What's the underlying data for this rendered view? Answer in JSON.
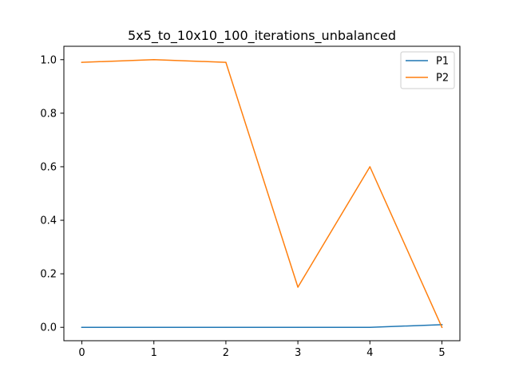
{
  "chart_data": {
    "type": "line",
    "title": "5x5_to_10x10_100_iterations_unbalanced",
    "xlabel": "",
    "ylabel": "",
    "x": [
      0,
      1,
      2,
      3,
      4,
      5
    ],
    "xlim": [
      -0.25,
      5.25
    ],
    "ylim": [
      -0.05,
      1.05
    ],
    "xticks": [
      0,
      1,
      2,
      3,
      4,
      5
    ],
    "yticks": [
      0.0,
      0.2,
      0.4,
      0.6,
      0.8,
      1.0
    ],
    "ytick_labels": [
      "0.0",
      "0.2",
      "0.4",
      "0.6",
      "0.8",
      "1.0"
    ],
    "grid": false,
    "legend_position": "top-right",
    "series": [
      {
        "name": "P1",
        "color": "#1f77b4",
        "values": [
          0.0,
          0.0,
          0.0,
          0.0,
          0.0,
          0.01
        ]
      },
      {
        "name": "P2",
        "color": "#ff7f0e",
        "values": [
          0.99,
          1.0,
          0.99,
          0.15,
          0.6,
          0.0
        ]
      }
    ]
  }
}
